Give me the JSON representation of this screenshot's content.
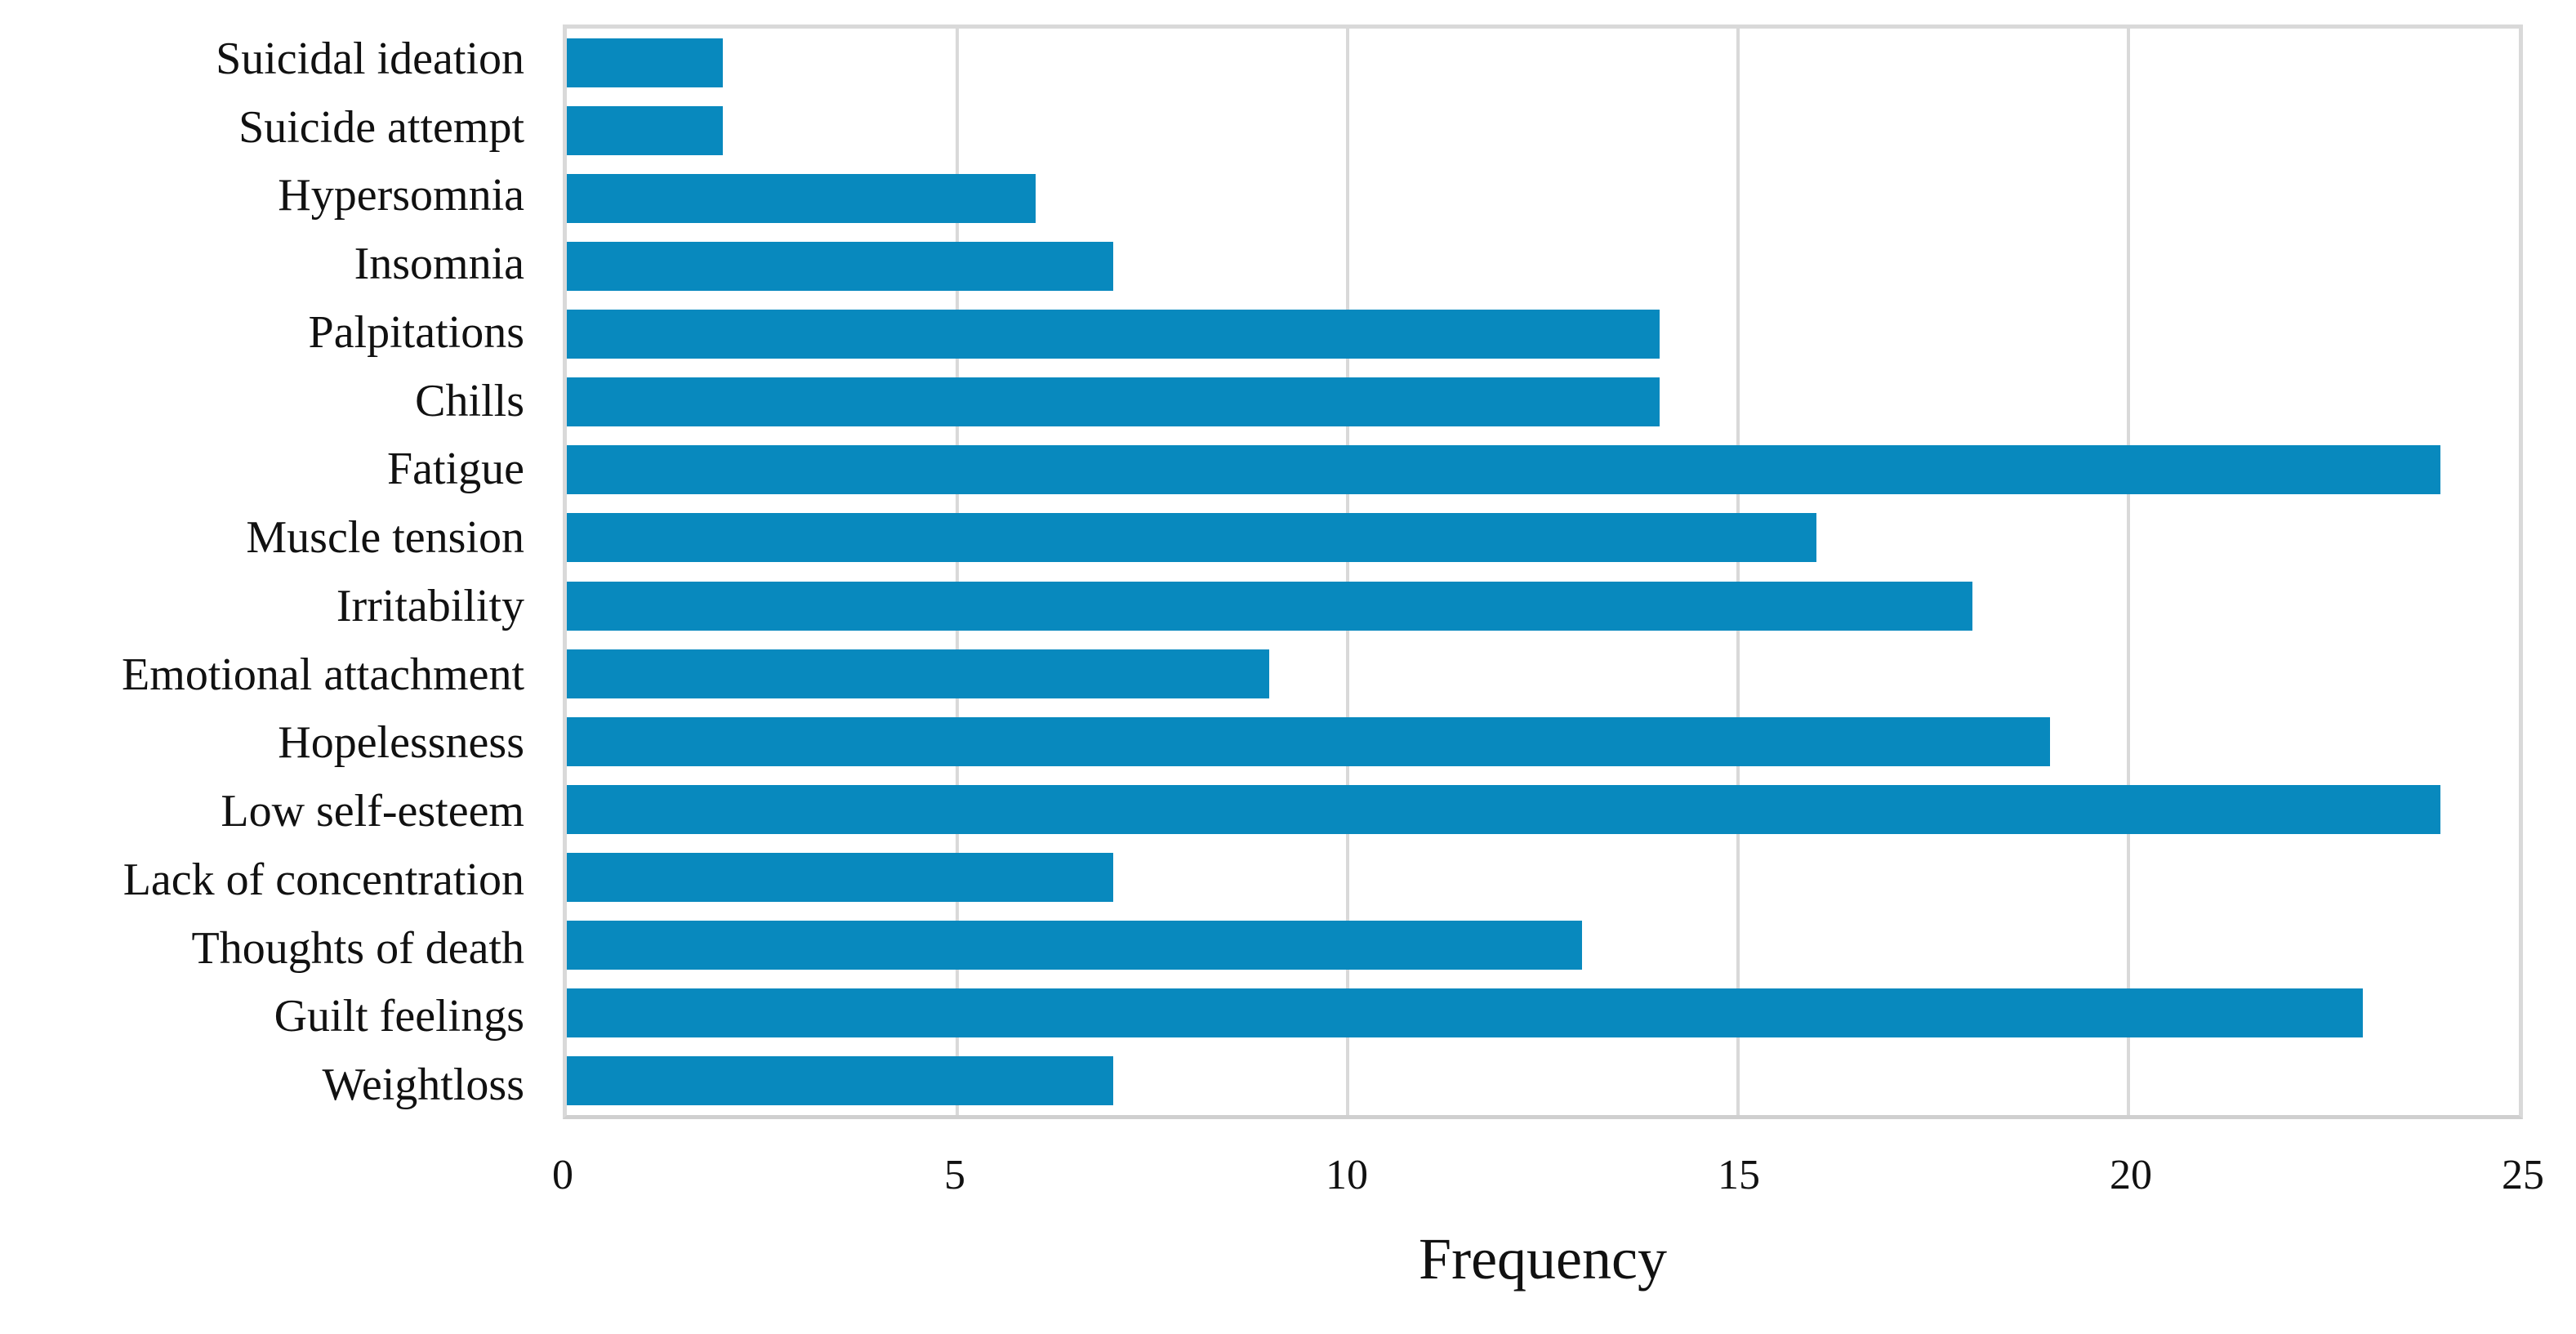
{
  "chart_data": {
    "type": "bar",
    "orientation": "horizontal",
    "title": "",
    "xlabel": "Frequency",
    "ylabel": "",
    "categories": [
      "Suicidal ideation",
      "Suicide attempt",
      "Hypersomnia",
      "Insomnia",
      "Palpitations",
      "Chills",
      "Fatigue",
      "Muscle tension",
      "Irritability",
      "Emotional attachment",
      "Hopelessness",
      "Low self-esteem",
      "Lack of concentration",
      "Thoughts of death",
      "Guilt feelings",
      "Weightloss"
    ],
    "values": [
      2,
      2,
      6,
      7,
      14,
      14,
      24,
      16,
      18,
      9,
      19,
      24,
      7,
      13,
      23,
      7
    ],
    "xlim": [
      0,
      25
    ],
    "xticks": [
      0,
      5,
      10,
      15,
      20,
      25
    ],
    "grid": "vertical-gridlines-on",
    "legend": "none",
    "colors": {
      "bar": "#0889be",
      "gridline": "#d9d9d9",
      "plot_border": "#d9d9d9",
      "axis_line": "#cfcfcf",
      "text": "#111111",
      "background": "#ffffff"
    }
  }
}
